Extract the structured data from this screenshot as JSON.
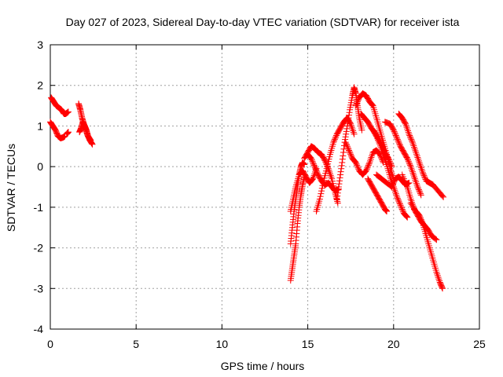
{
  "chart_data": {
    "type": "scatter",
    "title": "Day 027 of 2023, Sidereal Day-to-day VTEC variation (SDTVAR) for receiver ista",
    "xlabel": "GPS time / hours",
    "ylabel": "SDTVAR / TECUs",
    "xlim": [
      0,
      25
    ],
    "ylim": [
      -4,
      3
    ],
    "x_ticks": [
      0,
      5,
      10,
      15,
      20,
      25
    ],
    "y_ticks": [
      -4,
      -3,
      -2,
      -1,
      0,
      1,
      2,
      3
    ],
    "x_tick_labels": [
      "0",
      "5",
      "10",
      "15",
      "20",
      "25"
    ],
    "y_tick_labels": [
      "-4",
      "-3",
      "-2",
      "-1",
      "0",
      "1",
      "2",
      "3"
    ],
    "grid": true,
    "legend": "none",
    "marker": "+",
    "colors": {
      "series": "#ff0000",
      "grid": "#a0a0a0",
      "axis": "#000000"
    },
    "series": [
      {
        "points": [
          [
            0.0,
            1.1
          ],
          [
            0.15,
            1.0
          ],
          [
            0.3,
            0.9
          ],
          [
            0.45,
            0.75
          ],
          [
            0.6,
            0.7
          ],
          [
            0.75,
            0.72
          ],
          [
            0.85,
            0.75
          ]
        ]
      },
      {
        "points": [
          [
            0.05,
            1.7
          ],
          [
            0.2,
            1.6
          ],
          [
            0.35,
            1.5
          ],
          [
            0.5,
            1.45
          ],
          [
            0.65,
            1.4
          ],
          [
            0.8,
            1.3
          ],
          [
            0.9,
            1.3
          ],
          [
            1.05,
            1.35
          ]
        ]
      },
      {
        "points": [
          [
            1.05,
            0.85
          ],
          [
            0.95,
            0.8
          ]
        ]
      },
      {
        "points": [
          [
            1.65,
            1.55
          ],
          [
            1.75,
            1.4
          ],
          [
            1.85,
            1.2
          ],
          [
            1.95,
            1.05
          ],
          [
            2.05,
            0.95
          ],
          [
            2.15,
            0.8
          ],
          [
            2.3,
            0.65
          ],
          [
            2.45,
            0.55
          ]
        ]
      },
      {
        "points": [
          [
            1.7,
            0.85
          ],
          [
            1.8,
            0.95
          ],
          [
            1.9,
            1.1
          ],
          [
            2.0,
            1.0
          ],
          [
            2.1,
            0.9
          ],
          [
            2.2,
            0.75
          ],
          [
            2.35,
            0.65
          ]
        ]
      },
      {
        "points": [
          [
            14.0,
            -2.8
          ],
          [
            14.1,
            -2.5
          ],
          [
            14.2,
            -2.2
          ],
          [
            14.3,
            -1.9
          ],
          [
            14.4,
            -1.4
          ],
          [
            14.5,
            -1.0
          ],
          [
            14.6,
            -0.7
          ],
          [
            14.7,
            -0.45
          ],
          [
            14.8,
            -0.25
          ]
        ]
      },
      {
        "points": [
          [
            14.0,
            -1.9
          ],
          [
            14.1,
            -1.5
          ],
          [
            14.2,
            -1.1
          ],
          [
            14.3,
            -0.8
          ],
          [
            14.4,
            -0.5
          ],
          [
            14.5,
            -0.2
          ],
          [
            14.6,
            0.0
          ],
          [
            14.7,
            0.1
          ],
          [
            14.8,
            0.05
          ]
        ]
      },
      {
        "points": [
          [
            14.0,
            -1.1
          ],
          [
            14.15,
            -0.8
          ],
          [
            14.3,
            -0.5
          ],
          [
            14.5,
            -0.2
          ],
          [
            14.7,
            -0.1
          ],
          [
            14.9,
            -0.25
          ],
          [
            15.1,
            -0.4
          ],
          [
            15.3,
            -0.3
          ],
          [
            15.5,
            -0.05
          ]
        ]
      },
      {
        "points": [
          [
            14.8,
            0.2
          ],
          [
            15.0,
            0.35
          ],
          [
            15.2,
            0.5
          ],
          [
            15.4,
            0.45
          ],
          [
            15.6,
            0.35
          ],
          [
            15.8,
            0.3
          ],
          [
            16.0,
            0.15
          ],
          [
            16.2,
            -0.05
          ],
          [
            16.4,
            -0.3
          ],
          [
            16.6,
            -0.65
          ],
          [
            16.75,
            -0.9
          ]
        ]
      },
      {
        "points": [
          [
            15.5,
            -1.1
          ],
          [
            15.7,
            -0.8
          ],
          [
            15.9,
            -0.4
          ],
          [
            16.1,
            -0.05
          ],
          [
            16.3,
            0.3
          ],
          [
            16.5,
            0.6
          ],
          [
            16.7,
            0.8
          ],
          [
            16.9,
            0.95
          ],
          [
            17.1,
            1.1
          ],
          [
            17.3,
            1.2
          ],
          [
            17.5,
            1.05
          ],
          [
            17.7,
            0.8
          ]
        ]
      },
      {
        "points": [
          [
            15.0,
            0.3
          ],
          [
            15.2,
            0.2
          ],
          [
            15.4,
            0.0
          ],
          [
            15.6,
            -0.2
          ],
          [
            15.8,
            -0.35
          ],
          [
            16.0,
            -0.45
          ],
          [
            16.2,
            -0.4
          ],
          [
            16.4,
            -0.5
          ],
          [
            16.6,
            -0.6
          ],
          [
            16.8,
            -0.55
          ]
        ]
      },
      {
        "points": [
          [
            16.7,
            -0.8
          ],
          [
            16.85,
            -0.35
          ],
          [
            17.0,
            0.1
          ],
          [
            17.15,
            0.6
          ],
          [
            17.3,
            1.0
          ],
          [
            17.45,
            1.4
          ],
          [
            17.6,
            1.75
          ],
          [
            17.7,
            1.95
          ],
          [
            17.8,
            1.8
          ],
          [
            17.9,
            1.5
          ],
          [
            18.0,
            1.2
          ],
          [
            18.15,
            0.9
          ]
        ]
      },
      {
        "points": [
          [
            17.8,
            1.5
          ],
          [
            18.0,
            1.7
          ],
          [
            18.2,
            1.8
          ],
          [
            18.4,
            1.75
          ],
          [
            18.6,
            1.6
          ],
          [
            18.8,
            1.5
          ],
          [
            19.0,
            1.2
          ],
          [
            19.2,
            0.9
          ],
          [
            19.4,
            0.6
          ],
          [
            19.6,
            0.3
          ],
          [
            19.8,
            -0.05
          ],
          [
            20.0,
            -0.3
          ]
        ]
      },
      {
        "points": [
          [
            17.2,
            0.6
          ],
          [
            17.4,
            0.4
          ],
          [
            17.6,
            0.2
          ],
          [
            17.8,
            0.1
          ],
          [
            18.0,
            -0.1
          ],
          [
            18.2,
            -0.2
          ],
          [
            18.4,
            -0.1
          ],
          [
            18.6,
            0.1
          ],
          [
            18.8,
            0.35
          ],
          [
            19.0,
            0.4
          ],
          [
            19.2,
            0.3
          ],
          [
            19.4,
            0.1
          ]
        ]
      },
      {
        "points": [
          [
            18.1,
            1.3
          ],
          [
            18.3,
            1.2
          ],
          [
            18.5,
            1.1
          ],
          [
            18.7,
            0.95
          ],
          [
            18.9,
            0.85
          ],
          [
            19.1,
            0.7
          ],
          [
            19.3,
            0.55
          ],
          [
            19.5,
            0.35
          ],
          [
            19.7,
            0.2
          ],
          [
            19.9,
            0.0
          ]
        ]
      },
      {
        "points": [
          [
            18.8,
            0.9
          ],
          [
            19.0,
            0.75
          ],
          [
            19.2,
            0.55
          ],
          [
            19.4,
            0.3
          ],
          [
            19.6,
            0.05
          ],
          [
            19.8,
            -0.25
          ],
          [
            20.0,
            -0.5
          ],
          [
            20.2,
            -0.75
          ],
          [
            20.4,
            -0.95
          ],
          [
            20.6,
            -1.15
          ],
          [
            20.8,
            -1.25
          ]
        ]
      },
      {
        "points": [
          [
            18.5,
            -0.3
          ],
          [
            18.7,
            -0.45
          ],
          [
            18.9,
            -0.6
          ],
          [
            19.1,
            -0.75
          ],
          [
            19.3,
            -0.9
          ],
          [
            19.5,
            -1.05
          ],
          [
            19.6,
            -1.1
          ]
        ]
      },
      {
        "points": [
          [
            19.0,
            -0.2
          ],
          [
            19.3,
            -0.3
          ],
          [
            19.6,
            -0.4
          ],
          [
            19.9,
            -0.5
          ],
          [
            20.1,
            -0.3
          ],
          [
            20.3,
            -0.25
          ],
          [
            20.5,
            -0.35
          ],
          [
            20.7,
            -0.45
          ],
          [
            20.9,
            -0.4
          ]
        ]
      },
      {
        "points": [
          [
            19.5,
            1.1
          ],
          [
            19.8,
            1.05
          ],
          [
            20.0,
            0.9
          ],
          [
            20.2,
            0.7
          ],
          [
            20.4,
            0.5
          ],
          [
            20.6,
            0.35
          ],
          [
            20.8,
            0.2
          ],
          [
            21.0,
            0.0
          ],
          [
            21.2,
            -0.25
          ],
          [
            21.4,
            -0.5
          ],
          [
            21.6,
            -0.7
          ]
        ]
      },
      {
        "points": [
          [
            20.3,
            1.3
          ],
          [
            20.5,
            1.2
          ],
          [
            20.7,
            1.05
          ],
          [
            20.9,
            0.8
          ],
          [
            21.1,
            0.6
          ],
          [
            21.3,
            0.35
          ],
          [
            21.5,
            0.1
          ],
          [
            21.7,
            -0.15
          ],
          [
            21.9,
            -0.35
          ],
          [
            22.1,
            -0.4
          ],
          [
            22.3,
            -0.45
          ],
          [
            22.6,
            -0.6
          ],
          [
            22.9,
            -0.75
          ]
        ]
      },
      {
        "points": [
          [
            20.5,
            -0.2
          ],
          [
            20.8,
            -0.5
          ],
          [
            21.0,
            -0.8
          ],
          [
            21.2,
            -1.05
          ],
          [
            21.4,
            -1.2
          ],
          [
            21.6,
            -1.35
          ],
          [
            21.8,
            -1.45
          ],
          [
            22.0,
            -1.55
          ],
          [
            22.2,
            -1.7
          ],
          [
            22.5,
            -1.8
          ]
        ]
      },
      {
        "points": [
          [
            21.0,
            -0.9
          ],
          [
            21.3,
            -1.1
          ],
          [
            21.5,
            -1.2
          ],
          [
            21.7,
            -1.4
          ],
          [
            21.9,
            -1.7
          ],
          [
            22.1,
            -2.0
          ],
          [
            22.3,
            -2.3
          ],
          [
            22.5,
            -2.6
          ],
          [
            22.7,
            -2.85
          ],
          [
            22.85,
            -3.0
          ]
        ]
      }
    ]
  }
}
